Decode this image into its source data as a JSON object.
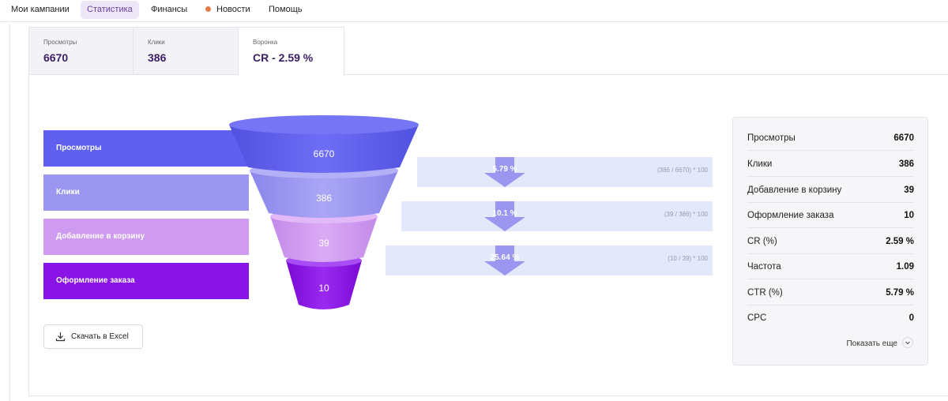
{
  "nav": {
    "items": [
      {
        "label": "Мои кампании"
      },
      {
        "label": "Статистика"
      },
      {
        "label": "Финансы"
      },
      {
        "label": "Новости"
      },
      {
        "label": "Помощь"
      }
    ]
  },
  "tabs": [
    {
      "label": "Просмотры",
      "value": "6670"
    },
    {
      "label": "Клики",
      "value": "386"
    },
    {
      "label": "Воронка",
      "value": "CR - 2.59 %"
    }
  ],
  "funnel": {
    "stages": [
      {
        "label": "Просмотры",
        "value": "6670",
        "color": "#5f5ff0"
      },
      {
        "label": "Клики",
        "value": "386",
        "color": "#9b96f0"
      },
      {
        "label": "Добавление в корзину",
        "value": "39",
        "color": "#cf9bf0"
      },
      {
        "label": "Оформление заказа",
        "value": "10",
        "color": "#8a13e6"
      }
    ],
    "conversions": [
      {
        "percent": "5.79 %",
        "formula": "(386 / 6670) * 100"
      },
      {
        "percent": "10.1 %",
        "formula": "(39 / 386) * 100"
      },
      {
        "percent": "25.64 %",
        "formula": "(10 / 39) * 100"
      }
    ]
  },
  "download": {
    "label": "Скачать в Excel"
  },
  "stats": {
    "rows": [
      {
        "k": "Просмотры",
        "v": "6670"
      },
      {
        "k": "Клики",
        "v": "386"
      },
      {
        "k": "Добавление в корзину",
        "v": "39"
      },
      {
        "k": "Оформление заказа",
        "v": "10"
      },
      {
        "k": "CR (%)",
        "v": "2.59 %"
      },
      {
        "k": "Частота",
        "v": "1.09"
      },
      {
        "k": "CTR (%)",
        "v": "5.79 %"
      },
      {
        "k": "CPC",
        "v": "0"
      }
    ],
    "show_more": "Показать еще"
  },
  "colors": {
    "accent": "#6b3fa0",
    "news_dot": "#ea7a47",
    "strip": "#e4e8fb",
    "arrow": "#9b96f0"
  }
}
